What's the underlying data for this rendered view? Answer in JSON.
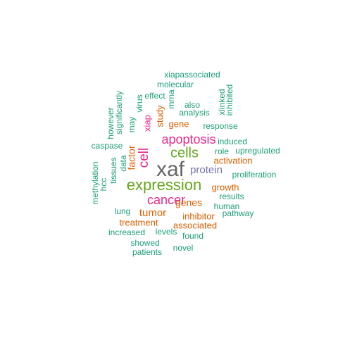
{
  "colors": {
    "teal": "#1b9e77",
    "orange": "#d95f02",
    "purple": "#7570b3",
    "magenta": "#e7298a",
    "green": "#66a61e",
    "gray": "#666666"
  },
  "words": [
    {
      "text": "xaf",
      "color": "gray"
    },
    {
      "text": "expression",
      "color": "green"
    },
    {
      "text": "cells",
      "color": "green"
    },
    {
      "text": "apoptosis",
      "color": "magenta"
    },
    {
      "text": "cancer",
      "color": "magenta"
    },
    {
      "text": "cell",
      "color": "magenta"
    },
    {
      "text": "protein",
      "color": "purple"
    },
    {
      "text": "tumor",
      "color": "orange"
    },
    {
      "text": "genes",
      "color": "orange"
    },
    {
      "text": "factor",
      "color": "orange"
    },
    {
      "text": "gene",
      "color": "orange"
    },
    {
      "text": "xiap",
      "color": "magenta"
    },
    {
      "text": "study",
      "color": "orange"
    },
    {
      "text": "activation",
      "color": "orange"
    },
    {
      "text": "growth",
      "color": "orange"
    },
    {
      "text": "associated",
      "color": "orange"
    },
    {
      "text": "inhibitor",
      "color": "orange"
    },
    {
      "text": "treatment",
      "color": "orange"
    },
    {
      "text": "xiapassociated",
      "color": "teal"
    },
    {
      "text": "molecular",
      "color": "teal"
    },
    {
      "text": "effect",
      "color": "teal"
    },
    {
      "text": "virus",
      "color": "teal"
    },
    {
      "text": "mrna",
      "color": "teal"
    },
    {
      "text": "also",
      "color": "teal"
    },
    {
      "text": "analysis",
      "color": "teal"
    },
    {
      "text": "xlinked",
      "color": "teal"
    },
    {
      "text": "inhibited",
      "color": "teal"
    },
    {
      "text": "response",
      "color": "teal"
    },
    {
      "text": "significantly",
      "color": "teal"
    },
    {
      "text": "however",
      "color": "teal"
    },
    {
      "text": "may",
      "color": "teal"
    },
    {
      "text": "caspase",
      "color": "teal"
    },
    {
      "text": "induced",
      "color": "teal"
    },
    {
      "text": "role",
      "color": "teal"
    },
    {
      "text": "upregulated",
      "color": "teal"
    },
    {
      "text": "data",
      "color": "teal"
    },
    {
      "text": "tissues",
      "color": "teal"
    },
    {
      "text": "methylation",
      "color": "teal"
    },
    {
      "text": "hcc",
      "color": "teal"
    },
    {
      "text": "proliferation",
      "color": "teal"
    },
    {
      "text": "results",
      "color": "teal"
    },
    {
      "text": "human",
      "color": "teal"
    },
    {
      "text": "pathway",
      "color": "teal"
    },
    {
      "text": "lung",
      "color": "teal"
    },
    {
      "text": "levels",
      "color": "teal"
    },
    {
      "text": "found",
      "color": "teal"
    },
    {
      "text": "increased",
      "color": "teal"
    },
    {
      "text": "showed",
      "color": "teal"
    },
    {
      "text": "patients",
      "color": "teal"
    },
    {
      "text": "novel",
      "color": "teal"
    }
  ]
}
